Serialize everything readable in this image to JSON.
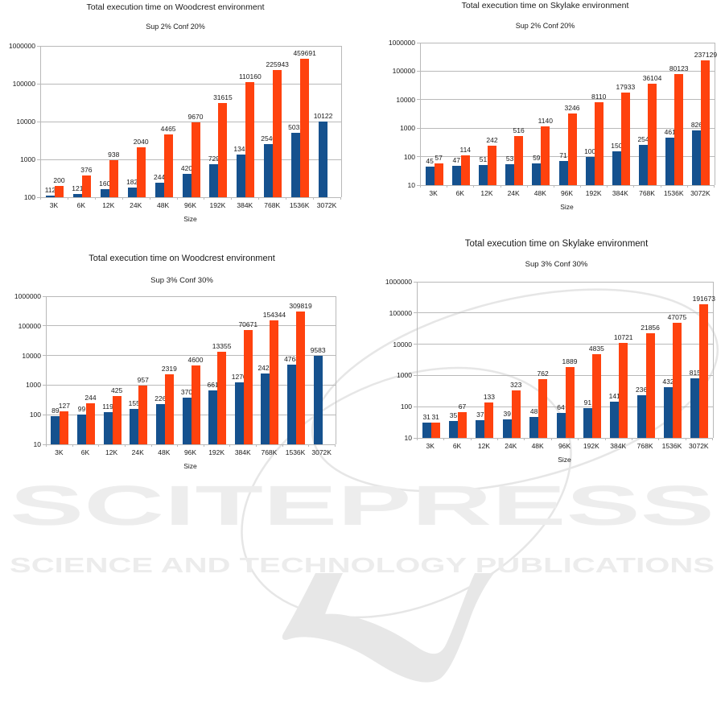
{
  "watermark": {
    "logo_text": "SCITEPRESS",
    "tagline": "SCIENCE AND TECHNOLOGY PUBLICATIONS",
    "color": "#ededed"
  },
  "colors": {
    "series_blue": "#15518e",
    "series_orange": "#ff420e",
    "grid": "#b9b9b9",
    "text": "#1a1a1a"
  },
  "chart_data": [
    {
      "type": "bar",
      "title": "Total execution time on Woodcrest environment",
      "subtitle": "Sup 2% Conf 20%",
      "xlabel": "Size",
      "y_scale": "log",
      "ylim": [
        100,
        1000000
      ],
      "y_ticks": [
        "100",
        "1000",
        "10000",
        "100000",
        "1000000"
      ],
      "grid": true,
      "legend": "none",
      "categories": [
        "3K",
        "6K",
        "12K",
        "24K",
        "48K",
        "96K",
        "192K",
        "384K",
        "768K",
        "1536K",
        "3072K"
      ],
      "series": [
        {
          "name": "blue",
          "values": [
            112,
            121,
            160,
            182,
            244,
            420,
            729,
            1345,
            2540,
            5032,
            10122
          ]
        },
        {
          "name": "orange",
          "values": [
            200,
            376,
            938,
            2040,
            4465,
            9670,
            31615,
            110160,
            225943,
            459691,
            null
          ]
        }
      ]
    },
    {
      "type": "bar",
      "title": "Total execution time on Skylake environment",
      "subtitle": "Sup 2% Conf 20%",
      "xlabel": "Size",
      "y_scale": "log",
      "ylim": [
        10,
        1000000
      ],
      "y_ticks": [
        "10",
        "100",
        "1000",
        "10000",
        "100000",
        "1000000"
      ],
      "grid": true,
      "legend": "none",
      "categories": [
        "3K",
        "6K",
        "12K",
        "24K",
        "48K",
        "96K",
        "192K",
        "384K",
        "768K",
        "1536K",
        "3072K"
      ],
      "series": [
        {
          "name": "blue",
          "values": [
            45,
            47,
            51,
            53,
            59,
            71,
            100,
            150,
            254,
            461,
            826
          ]
        },
        {
          "name": "orange",
          "values": [
            57,
            114,
            242,
            516,
            1140,
            3246,
            8110,
            17933,
            36104,
            80123,
            237129
          ]
        }
      ]
    },
    {
      "type": "bar",
      "title": "Total execution time on Woodcrest environment",
      "subtitle": "Sup 3% Conf 30%",
      "xlabel": "Size",
      "y_scale": "log",
      "ylim": [
        10,
        1000000
      ],
      "y_ticks": [
        "10",
        "100",
        "1000",
        "10000",
        "100000",
        "1000000"
      ],
      "grid": true,
      "legend": "none",
      "categories": [
        "3K",
        "6K",
        "12K",
        "24K",
        "48K",
        "96K",
        "192K",
        "384K",
        "768K",
        "1536K",
        "3072K"
      ],
      "series": [
        {
          "name": "blue",
          "values": [
            89,
            99,
            119,
            155,
            226,
            370,
            661,
            1270,
            2421,
            4768,
            9583
          ]
        },
        {
          "name": "orange",
          "values": [
            127,
            244,
            425,
            957,
            2319,
            4600,
            13355,
            70671,
            154344,
            309819,
            null
          ]
        }
      ]
    },
    {
      "type": "bar",
      "title": "Total execution time on Skylake environment",
      "subtitle": "Sup 3% Conf 30%",
      "xlabel": "Size",
      "y_scale": "log",
      "ylim": [
        10,
        1000000
      ],
      "y_ticks": [
        "10",
        "100",
        "1000",
        "10000",
        "100000",
        "1000000"
      ],
      "grid": true,
      "legend": "none",
      "categories": [
        "3K",
        "6K",
        "12K",
        "24K",
        "48K",
        "96K",
        "192K",
        "384K",
        "768K",
        "1536K",
        "3072K"
      ],
      "series": [
        {
          "name": "blue",
          "values": [
            31,
            35,
            37,
            39,
            48,
            64,
            91,
            141,
            236,
            432,
            815
          ]
        },
        {
          "name": "orange",
          "values": [
            31,
            67,
            133,
            323,
            762,
            1889,
            4835,
            10721,
            21856,
            47075,
            191673
          ]
        }
      ]
    }
  ]
}
